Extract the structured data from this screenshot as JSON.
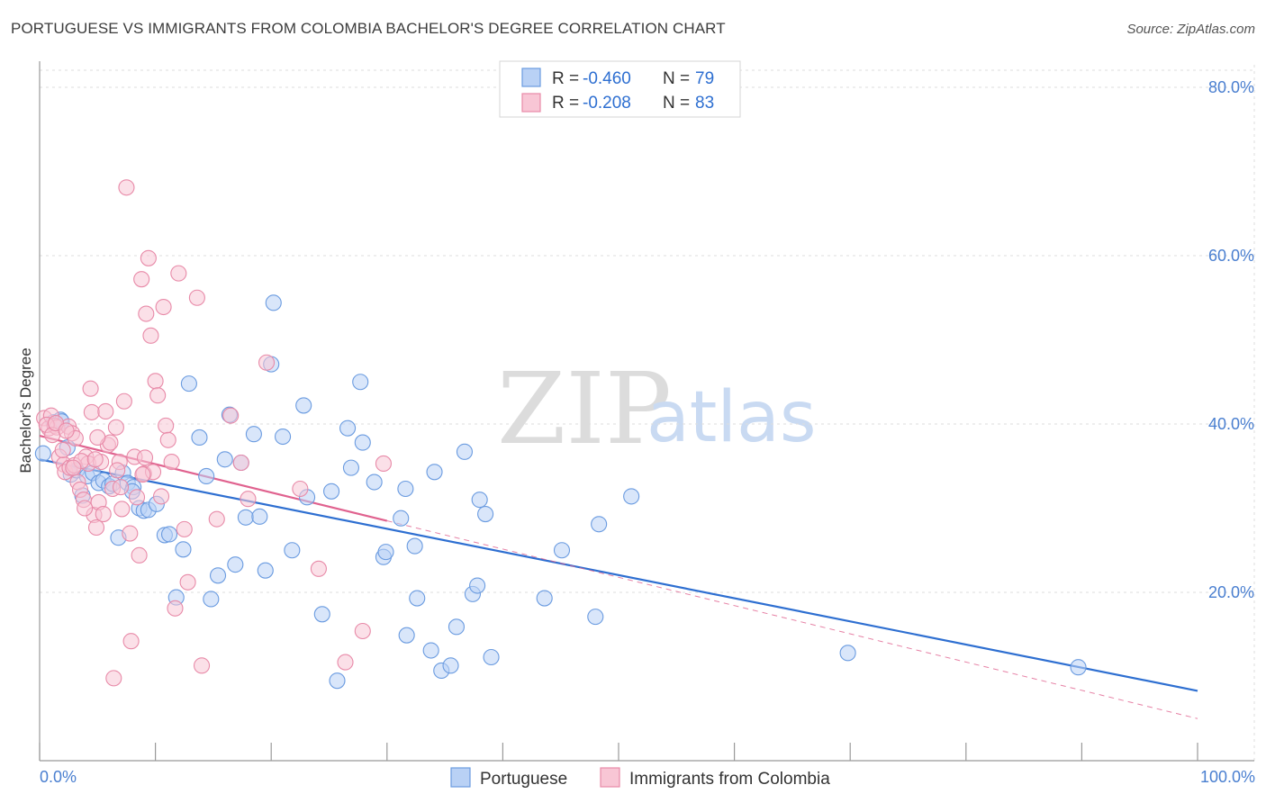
{
  "title": "PORTUGUESE VS IMMIGRANTS FROM COLOMBIA BACHELOR'S DEGREE CORRELATION CHART",
  "source": "Source: ZipAtlas.com",
  "watermark": {
    "zip": "ZIP",
    "atlas": "atlas"
  },
  "chart_data": {
    "type": "scatter",
    "title": "PORTUGUESE VS IMMIGRANTS FROM COLOMBIA BACHELOR'S DEGREE CORRELATION CHART",
    "xlabel": "",
    "ylabel": "Bachelor's Degree",
    "xlim": [
      0,
      100
    ],
    "ylim": [
      0,
      85
    ],
    "x_tick_labels": {
      "left": "0.0%",
      "right": "100.0%"
    },
    "y_ticks": [
      {
        "value": 20,
        "label": "20.0%"
      },
      {
        "value": 40,
        "label": "40.0%"
      },
      {
        "value": 60,
        "label": "60.0%"
      },
      {
        "value": 80,
        "label": "80.0%"
      }
    ],
    "legend": [
      {
        "name": "Portuguese",
        "r_label": "R =",
        "r": "-0.460",
        "n_label": "N =",
        "n": "79",
        "color": "#6a9be0",
        "fill": "#b9d1f5"
      },
      {
        "name": "Immigrants from Colombia",
        "r_label": "R =",
        "r": "-0.208",
        "n_label": "N =",
        "n": "83",
        "color": "#e88aa8",
        "fill": "#f8c6d5"
      }
    ],
    "series": [
      {
        "name": "Portuguese",
        "color": "#6a9be0",
        "trend": {
          "x1": 0,
          "y1": 35.8,
          "x2": 100,
          "y2": 8.3,
          "color": "#2e6fd1"
        },
        "points": [
          [
            0.3,
            36.5
          ],
          [
            1.2,
            40.2
          ],
          [
            1.8,
            40.5
          ],
          [
            2.4,
            37.2
          ],
          [
            2.7,
            34.0
          ],
          [
            3.2,
            34.5
          ],
          [
            3.7,
            31.5
          ],
          [
            4.1,
            33.8
          ],
          [
            4.6,
            34.2
          ],
          [
            5.1,
            33.0
          ],
          [
            5.5,
            33.3
          ],
          [
            6.0,
            32.6
          ],
          [
            6.8,
            26.5
          ],
          [
            7.2,
            34.2
          ],
          [
            7.6,
            33.0
          ],
          [
            8.1,
            32.5
          ],
          [
            8.6,
            30.0
          ],
          [
            9.0,
            29.7
          ],
          [
            9.4,
            29.8
          ],
          [
            10.1,
            30.5
          ],
          [
            10.8,
            26.8
          ],
          [
            11.2,
            26.9
          ],
          [
            11.8,
            19.4
          ],
          [
            12.4,
            25.1
          ],
          [
            12.9,
            44.8
          ],
          [
            13.8,
            38.4
          ],
          [
            14.4,
            33.8
          ],
          [
            14.8,
            19.2
          ],
          [
            15.4,
            22.0
          ],
          [
            16.0,
            35.8
          ],
          [
            16.4,
            41.1
          ],
          [
            16.9,
            23.3
          ],
          [
            17.4,
            35.4
          ],
          [
            17.8,
            28.9
          ],
          [
            18.5,
            38.8
          ],
          [
            19.0,
            29.0
          ],
          [
            19.5,
            22.6
          ],
          [
            20.0,
            47.1
          ],
          [
            20.2,
            54.4
          ],
          [
            21.0,
            38.5
          ],
          [
            21.8,
            25.0
          ],
          [
            22.8,
            42.2
          ],
          [
            23.1,
            31.3
          ],
          [
            24.4,
            17.4
          ],
          [
            25.2,
            32.0
          ],
          [
            25.7,
            9.5
          ],
          [
            26.6,
            39.5
          ],
          [
            26.9,
            34.8
          ],
          [
            27.7,
            45.0
          ],
          [
            27.9,
            37.8
          ],
          [
            28.9,
            33.1
          ],
          [
            29.7,
            24.2
          ],
          [
            29.9,
            24.8
          ],
          [
            31.2,
            28.8
          ],
          [
            31.6,
            32.3
          ],
          [
            31.7,
            14.9
          ],
          [
            32.4,
            25.5
          ],
          [
            32.6,
            19.3
          ],
          [
            33.8,
            13.1
          ],
          [
            34.1,
            34.3
          ],
          [
            34.7,
            10.7
          ],
          [
            35.5,
            11.3
          ],
          [
            36.0,
            15.9
          ],
          [
            36.7,
            36.7
          ],
          [
            37.4,
            19.8
          ],
          [
            37.8,
            20.8
          ],
          [
            38.0,
            31.0
          ],
          [
            38.5,
            29.3
          ],
          [
            39.0,
            12.3
          ],
          [
            43.6,
            19.3
          ],
          [
            45.1,
            25.0
          ],
          [
            48.0,
            17.1
          ],
          [
            48.3,
            28.1
          ],
          [
            51.1,
            31.4
          ],
          [
            69.8,
            12.8
          ],
          [
            89.7,
            11.1
          ],
          [
            1.9,
            40.3
          ],
          [
            6.3,
            32.9
          ],
          [
            8.0,
            32.0
          ]
        ]
      },
      {
        "name": "Immigrants from Colombia",
        "color": "#e88aa8",
        "trend": {
          "x1": 0,
          "y1": 38.6,
          "x2": 30,
          "y2": 28.5,
          "color": "#e0628f",
          "dash_to": {
            "x": 100,
            "y": 5.0
          }
        },
        "points": [
          [
            0.4,
            40.7
          ],
          [
            0.8,
            39.5
          ],
          [
            1.0,
            41.0
          ],
          [
            1.3,
            39.8
          ],
          [
            1.5,
            39.6
          ],
          [
            1.7,
            36.1
          ],
          [
            2.1,
            35.2
          ],
          [
            2.2,
            34.3
          ],
          [
            2.5,
            39.7
          ],
          [
            2.8,
            38.9
          ],
          [
            3.1,
            38.3
          ],
          [
            3.3,
            33.1
          ],
          [
            3.5,
            32.2
          ],
          [
            3.8,
            31.0
          ],
          [
            4.0,
            36.1
          ],
          [
            4.2,
            35.3
          ],
          [
            4.4,
            44.2
          ],
          [
            4.5,
            41.4
          ],
          [
            4.7,
            29.2
          ],
          [
            4.9,
            27.7
          ],
          [
            5.1,
            30.7
          ],
          [
            5.3,
            35.5
          ],
          [
            5.5,
            29.3
          ],
          [
            5.7,
            41.5
          ],
          [
            5.9,
            37.5
          ],
          [
            6.1,
            37.8
          ],
          [
            6.3,
            32.3
          ],
          [
            6.6,
            39.6
          ],
          [
            6.9,
            35.5
          ],
          [
            7.1,
            29.9
          ],
          [
            7.3,
            42.7
          ],
          [
            7.5,
            68.1
          ],
          [
            7.8,
            27.0
          ],
          [
            7.9,
            14.2
          ],
          [
            8.2,
            36.1
          ],
          [
            8.4,
            31.3
          ],
          [
            8.6,
            24.4
          ],
          [
            8.8,
            57.2
          ],
          [
            9.0,
            34.1
          ],
          [
            9.2,
            53.1
          ],
          [
            9.4,
            59.7
          ],
          [
            9.6,
            50.5
          ],
          [
            9.8,
            34.3
          ],
          [
            10.0,
            45.1
          ],
          [
            10.2,
            43.4
          ],
          [
            10.5,
            31.4
          ],
          [
            10.7,
            53.9
          ],
          [
            10.9,
            39.8
          ],
          [
            11.1,
            38.1
          ],
          [
            11.4,
            35.5
          ],
          [
            11.7,
            18.1
          ],
          [
            12.0,
            57.9
          ],
          [
            12.5,
            27.5
          ],
          [
            12.8,
            21.2
          ],
          [
            13.6,
            55.0
          ],
          [
            14.0,
            11.3
          ],
          [
            15.3,
            28.7
          ],
          [
            16.5,
            41.0
          ],
          [
            17.4,
            35.4
          ],
          [
            18.0,
            31.1
          ],
          [
            19.6,
            47.3
          ],
          [
            22.5,
            32.3
          ],
          [
            24.1,
            22.8
          ],
          [
            26.4,
            11.7
          ],
          [
            27.9,
            15.4
          ],
          [
            29.7,
            35.3
          ],
          [
            2.0,
            36.9
          ],
          [
            2.6,
            34.8
          ],
          [
            3.0,
            35.1
          ],
          [
            3.6,
            35.6
          ],
          [
            0.6,
            39.9
          ],
          [
            1.1,
            38.7
          ],
          [
            7.0,
            32.5
          ],
          [
            5.0,
            38.4
          ],
          [
            6.4,
            9.8
          ],
          [
            9.1,
            36.0
          ],
          [
            4.8,
            35.8
          ],
          [
            2.9,
            34.8
          ],
          [
            3.9,
            30.0
          ],
          [
            6.7,
            34.5
          ],
          [
            8.9,
            34.0
          ],
          [
            1.4,
            40.1
          ],
          [
            2.3,
            39.2
          ]
        ]
      }
    ],
    "bottom_legend": [
      "Portuguese",
      "Immigrants from Colombia"
    ]
  }
}
